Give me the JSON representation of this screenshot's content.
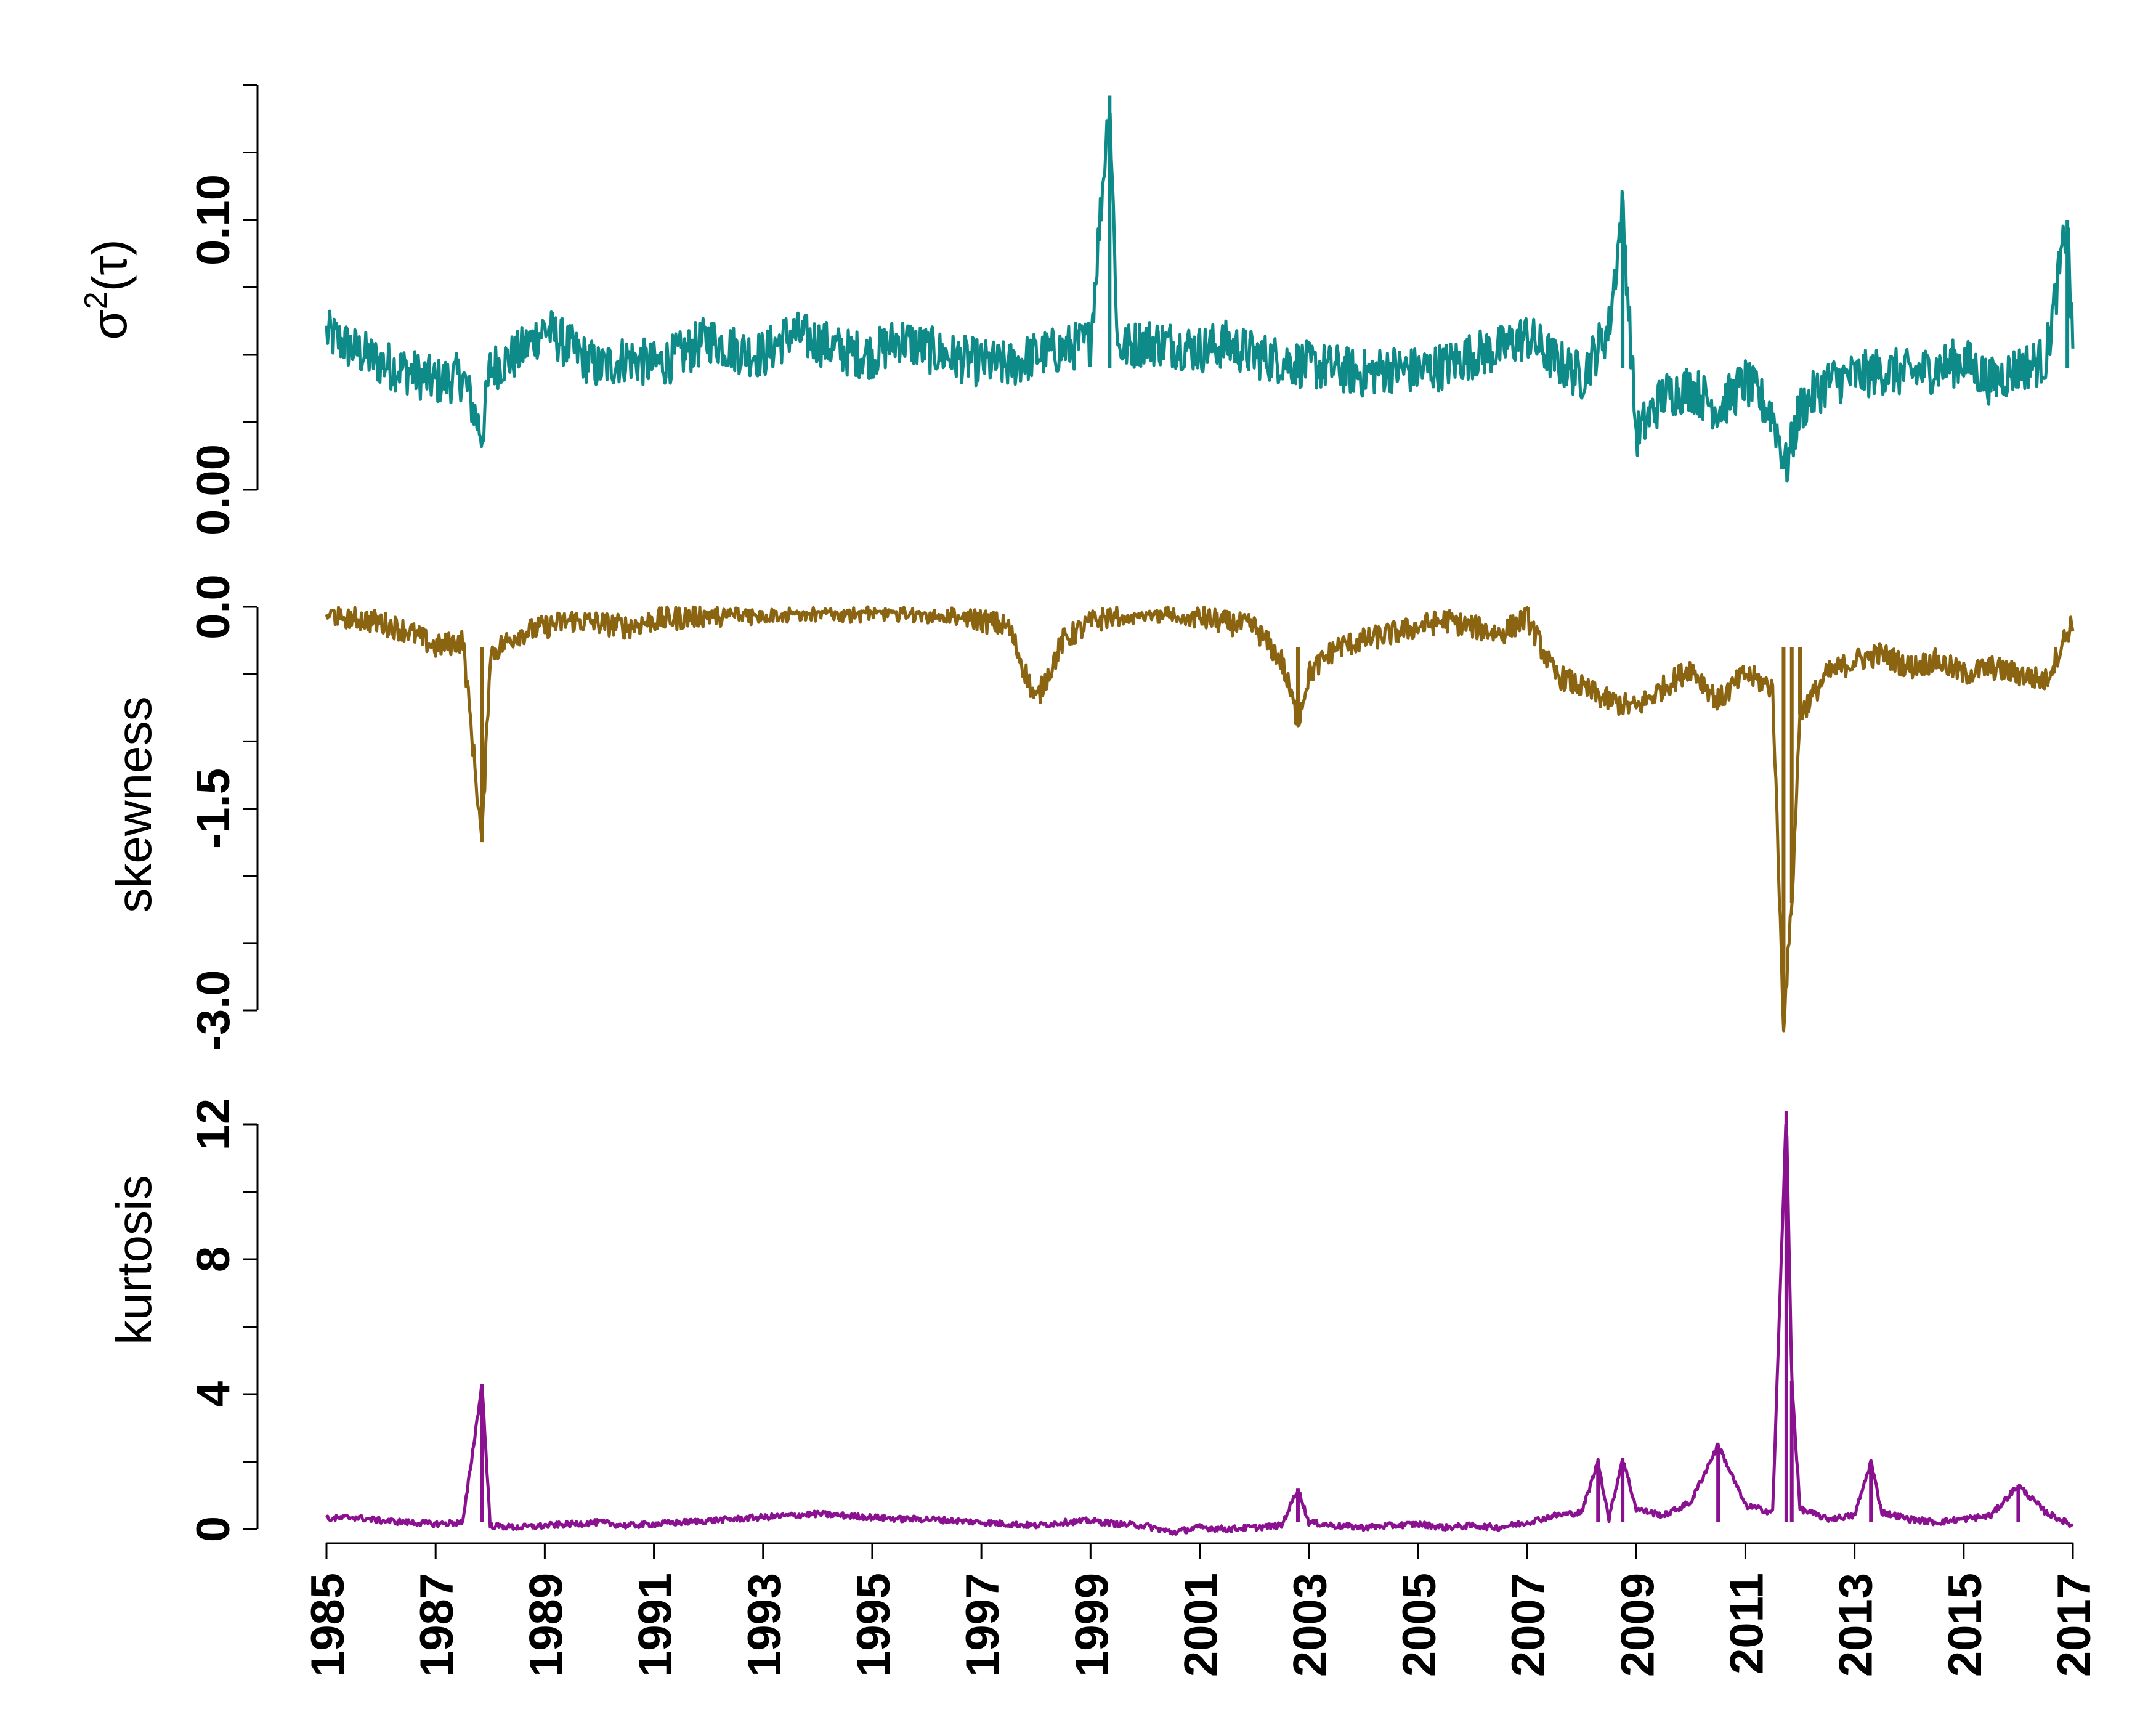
{
  "chart_data": [
    {
      "type": "line",
      "ylabel": "σ",
      "ylabel_superscript": "2",
      "ylabel_suffix": "(τ)",
      "color": "#0e8a88",
      "ylim": [
        0.0,
        0.15
      ],
      "yticks": [
        0.0,
        0.025,
        0.05,
        0.075,
        0.1,
        0.125,
        0.15
      ],
      "ytick_labels": [
        {
          "value": 0.0,
          "label": "0.00"
        },
        {
          "value": 0.1,
          "label": "0.10"
        }
      ],
      "x": [
        1985.0,
        1985.5,
        1986.0,
        1986.5,
        1987.0,
        1987.5,
        1987.85,
        1988.0,
        1988.5,
        1989.0,
        1989.5,
        1990.0,
        1990.5,
        1991.0,
        1991.5,
        1992.0,
        1992.5,
        1993.0,
        1993.5,
        1994.0,
        1994.5,
        1995.0,
        1995.5,
        1996.0,
        1996.5,
        1997.0,
        1997.5,
        1998.0,
        1998.5,
        1999.0,
        1999.35,
        1999.5,
        2000.0,
        2000.5,
        2001.0,
        2001.5,
        2002.0,
        2002.5,
        2003.0,
        2003.5,
        2004.0,
        2004.5,
        2005.0,
        2005.5,
        2006.0,
        2006.5,
        2007.0,
        2007.5,
        2008.0,
        2008.5,
        2008.75,
        2009.0,
        2009.5,
        2010.0,
        2010.5,
        2011.0,
        2011.5,
        2011.75,
        2012.0,
        2012.5,
        2013.0,
        2013.5,
        2014.0,
        2014.5,
        2015.0,
        2015.5,
        2016.0,
        2016.5,
        2016.9,
        2017.0
      ],
      "values": [
        0.058,
        0.052,
        0.047,
        0.044,
        0.04,
        0.042,
        0.02,
        0.045,
        0.05,
        0.06,
        0.052,
        0.045,
        0.049,
        0.046,
        0.05,
        0.056,
        0.052,
        0.05,
        0.058,
        0.055,
        0.051,
        0.05,
        0.056,
        0.052,
        0.049,
        0.047,
        0.046,
        0.05,
        0.052,
        0.055,
        0.146,
        0.052,
        0.055,
        0.054,
        0.052,
        0.054,
        0.05,
        0.048,
        0.046,
        0.045,
        0.043,
        0.045,
        0.044,
        0.046,
        0.05,
        0.052,
        0.057,
        0.048,
        0.042,
        0.06,
        0.105,
        0.02,
        0.035,
        0.038,
        0.03,
        0.04,
        0.028,
        0.008,
        0.03,
        0.04,
        0.042,
        0.044,
        0.043,
        0.045,
        0.048,
        0.04,
        0.045,
        0.048,
        0.1,
        0.05
      ]
    },
    {
      "type": "line",
      "ylabel": "skewness",
      "color": "#8a6410",
      "ylim": [
        -3.0,
        0.0
      ],
      "yticks": [
        -3.0,
        -2.5,
        -2.0,
        -1.5,
        -1.0,
        -0.5,
        0.0
      ],
      "ytick_labels": [
        {
          "value": -3.0,
          "label": "-3.0"
        },
        {
          "value": -1.5,
          "label": "-1.5"
        },
        {
          "value": 0.0,
          "label": "0.0"
        }
      ],
      "x": [
        1985.0,
        1985.5,
        1986.0,
        1986.5,
        1987.0,
        1987.5,
        1987.85,
        1988.0,
        1988.5,
        1989.0,
        1989.5,
        1990.0,
        1990.5,
        1991.0,
        1991.5,
        1992.0,
        1992.5,
        1993.0,
        1993.5,
        1994.0,
        1994.5,
        1995.0,
        1995.5,
        1996.0,
        1996.5,
        1997.0,
        1997.5,
        1998.0,
        1998.5,
        1999.0,
        1999.5,
        2000.0,
        2000.5,
        2001.0,
        2001.5,
        2002.0,
        2002.5,
        2002.8,
        2003.0,
        2003.5,
        2004.0,
        2004.5,
        2005.0,
        2005.5,
        2006.0,
        2006.5,
        2007.0,
        2007.5,
        2008.0,
        2008.5,
        2009.0,
        2009.5,
        2010.0,
        2010.5,
        2011.0,
        2011.5,
        2011.7,
        2011.85,
        2012.0,
        2012.5,
        2013.0,
        2013.5,
        2014.0,
        2014.5,
        2015.0,
        2015.5,
        2016.0,
        2016.5,
        2017.0
      ],
      "values": [
        -0.05,
        -0.08,
        -0.12,
        -0.18,
        -0.3,
        -0.25,
        -1.75,
        -0.35,
        -0.2,
        -0.15,
        -0.1,
        -0.12,
        -0.15,
        -0.1,
        -0.08,
        -0.06,
        -0.05,
        -0.04,
        -0.03,
        -0.02,
        -0.03,
        -0.02,
        -0.02,
        -0.03,
        -0.05,
        -0.1,
        -0.15,
        -0.7,
        -0.25,
        -0.12,
        -0.05,
        -0.03,
        -0.05,
        -0.08,
        -0.12,
        -0.15,
        -0.4,
        -0.85,
        -0.5,
        -0.3,
        -0.25,
        -0.2,
        -0.15,
        -0.1,
        -0.15,
        -0.2,
        -0.08,
        -0.5,
        -0.6,
        -0.7,
        -0.75,
        -0.6,
        -0.45,
        -0.7,
        -0.5,
        -0.6,
        -3.1,
        -2.2,
        -0.8,
        -0.5,
        -0.4,
        -0.35,
        -0.45,
        -0.4,
        -0.5,
        -0.45,
        -0.5,
        -0.55,
        -0.1
      ]
    },
    {
      "type": "line",
      "ylabel": "kurtosis",
      "color": "#8a1290",
      "ylim": [
        0,
        12
      ],
      "yticks": [
        0,
        2,
        4,
        6,
        8,
        10,
        12
      ],
      "ytick_labels": [
        {
          "value": 0,
          "label": "0"
        },
        {
          "value": 4,
          "label": "4"
        },
        {
          "value": 8,
          "label": "8"
        },
        {
          "value": 12,
          "label": "12"
        }
      ],
      "x": [
        1985.0,
        1985.5,
        1986.0,
        1986.5,
        1987.0,
        1987.5,
        1987.85,
        1988.0,
        1988.5,
        1989.0,
        1989.5,
        1990.0,
        1990.5,
        1991.0,
        1991.5,
        1992.0,
        1992.5,
        1993.0,
        1993.5,
        1994.0,
        1994.5,
        1995.0,
        1995.5,
        1996.0,
        1996.5,
        1997.0,
        1997.5,
        1998.0,
        1998.5,
        1999.0,
        1999.5,
        2000.0,
        2000.5,
        2001.0,
        2001.5,
        2002.0,
        2002.5,
        2002.8,
        2003.0,
        2003.5,
        2004.0,
        2004.5,
        2005.0,
        2005.5,
        2006.0,
        2006.5,
        2007.0,
        2007.5,
        2008.0,
        2008.3,
        2008.5,
        2008.75,
        2009.0,
        2009.5,
        2010.0,
        2010.5,
        2011.0,
        2011.5,
        2011.75,
        2011.85,
        2012.0,
        2012.5,
        2013.0,
        2013.3,
        2013.5,
        2014.0,
        2014.5,
        2015.0,
        2015.5,
        2016.0,
        2016.5,
        2017.0
      ],
      "values": [
        0.3,
        0.35,
        0.25,
        0.2,
        0.15,
        0.2,
        4.3,
        0.1,
        0.05,
        0.1,
        0.15,
        0.2,
        0.1,
        0.15,
        0.2,
        0.25,
        0.3,
        0.35,
        0.4,
        0.45,
        0.4,
        0.35,
        0.3,
        0.3,
        0.25,
        0.2,
        0.15,
        0.1,
        0.2,
        0.25,
        0.15,
        0.1,
        -0.1,
        0.05,
        0.0,
        0.05,
        0.1,
        1.2,
        0.2,
        0.1,
        0.05,
        0.1,
        0.15,
        0.05,
        0.1,
        0.05,
        0.2,
        0.4,
        0.5,
        2.0,
        0.3,
        2.1,
        0.6,
        0.4,
        0.8,
        2.5,
        0.7,
        0.5,
        12.4,
        4.4,
        0.6,
        0.3,
        0.4,
        2.0,
        0.5,
        0.3,
        0.2,
        0.3,
        0.4,
        1.3,
        0.5,
        0.1
      ]
    }
  ],
  "x_axis": {
    "xlim": [
      1985,
      2017
    ],
    "ticks": [
      1985,
      1987,
      1989,
      1991,
      1993,
      1995,
      1997,
      1999,
      2001,
      2003,
      2005,
      2007,
      2009,
      2011,
      2013,
      2015,
      2017
    ],
    "tick_labels": [
      "1985",
      "1987",
      "1989",
      "1991",
      "1993",
      "1995",
      "1997",
      "1999",
      "2001",
      "2003",
      "2005",
      "2007",
      "2009",
      "2011",
      "2013",
      "2015",
      "2017"
    ]
  }
}
